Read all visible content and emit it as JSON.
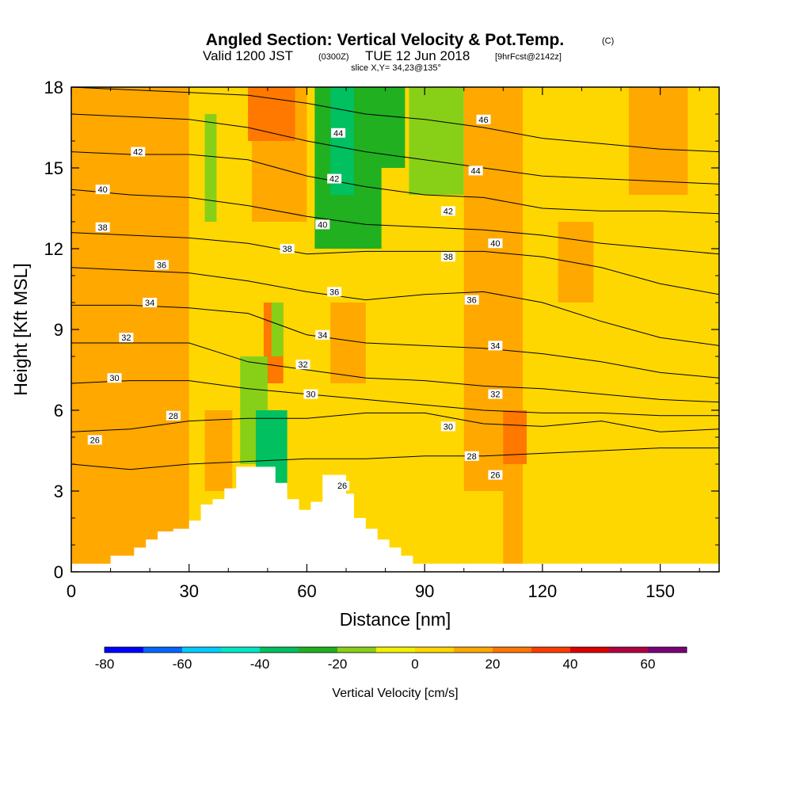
{
  "header": {
    "title_main": "Angled Section: Vertical Velocity & Pot.Temp.",
    "title_unit": "(C)",
    "valid_prefix": "Valid 1200 JST",
    "valid_utc": "(0300Z)",
    "valid_date": "TUE 12 Jun 2018",
    "forecast_tag": "[9hrFcst@2142z]",
    "slice_info": "slice X,Y= 34,23@135°"
  },
  "chart_data": {
    "type": "heatmap",
    "xlabel": "Distance [nm]",
    "ylabel": "Height [Kft MSL]",
    "xlim": [
      0,
      165
    ],
    "ylim": [
      0,
      18
    ],
    "xticks": [
      "0",
      "30",
      "60",
      "90",
      "120",
      "150"
    ],
    "yticks": [
      "0",
      "3",
      "6",
      "9",
      "12",
      "15",
      "18"
    ],
    "terrain_profile": [
      {
        "x": 0,
        "h": 0.3
      },
      {
        "x": 10,
        "h": 0.6
      },
      {
        "x": 16,
        "h": 0.9
      },
      {
        "x": 19,
        "h": 1.2
      },
      {
        "x": 22,
        "h": 1.5
      },
      {
        "x": 26,
        "h": 1.6
      },
      {
        "x": 30,
        "h": 1.9
      },
      {
        "x": 33,
        "h": 2.5
      },
      {
        "x": 36,
        "h": 2.7
      },
      {
        "x": 39,
        "h": 3.1
      },
      {
        "x": 42,
        "h": 3.9
      },
      {
        "x": 52,
        "h": 3.3
      },
      {
        "x": 55,
        "h": 2.7
      },
      {
        "x": 58,
        "h": 2.3
      },
      {
        "x": 61,
        "h": 2.6
      },
      {
        "x": 64,
        "h": 3.6
      },
      {
        "x": 70,
        "h": 2.9
      },
      {
        "x": 72,
        "h": 2.0
      },
      {
        "x": 75,
        "h": 1.6
      },
      {
        "x": 78,
        "h": 1.2
      },
      {
        "x": 81,
        "h": 0.9
      },
      {
        "x": 84,
        "h": 0.6
      },
      {
        "x": 87,
        "h": 0.3
      },
      {
        "x": 165,
        "h": 0.3
      }
    ],
    "velocity_cells": [
      {
        "x0": 0,
        "x1": 165,
        "y0": 0,
        "y1": 18,
        "w": 5
      },
      {
        "x0": 0,
        "x1": 30,
        "y0": 0,
        "y1": 18,
        "w": 12
      },
      {
        "x0": 30,
        "x1": 42,
        "y0": 7,
        "y1": 18,
        "w": 3
      },
      {
        "x0": 46,
        "x1": 60,
        "y0": 13,
        "y1": 18,
        "w": 15
      },
      {
        "x0": 45,
        "x1": 57,
        "y0": 16,
        "y1": 18,
        "w": 25
      },
      {
        "x0": 34,
        "x1": 41,
        "y0": 3,
        "y1": 6,
        "w": 18
      },
      {
        "x0": 49,
        "x1": 54,
        "y0": 7,
        "y1": 10,
        "w": 20
      },
      {
        "x0": 66,
        "x1": 75,
        "y0": 7,
        "y1": 10,
        "w": 18
      },
      {
        "x0": 62,
        "x1": 79,
        "y0": 12,
        "y1": 18,
        "w": -22
      },
      {
        "x0": 66,
        "x1": 72,
        "y0": 14,
        "y1": 18,
        "w": -35
      },
      {
        "x0": 77,
        "x1": 85,
        "y0": 15,
        "y1": 18,
        "w": -30
      },
      {
        "x0": 86,
        "x1": 100,
        "y0": 14,
        "y1": 18,
        "w": -20
      },
      {
        "x0": 34,
        "x1": 37,
        "y0": 13,
        "y1": 17,
        "w": -18
      },
      {
        "x0": 43,
        "x1": 50,
        "y0": 4,
        "y1": 8,
        "w": -18
      },
      {
        "x0": 47,
        "x1": 55,
        "y0": 3,
        "y1": 6,
        "w": -35
      },
      {
        "x0": 51,
        "x1": 54,
        "y0": 8,
        "y1": 10,
        "w": -20
      },
      {
        "x0": 100,
        "x1": 115,
        "y0": 0,
        "y1": 18,
        "w": 10
      },
      {
        "x0": 124,
        "x1": 133,
        "y0": 10,
        "y1": 13,
        "w": 18
      },
      {
        "x0": 142,
        "x1": 157,
        "y0": 14,
        "y1": 18,
        "w": 18
      },
      {
        "x0": 110,
        "x1": 116,
        "y0": 4,
        "y1": 6,
        "w": 20
      },
      {
        "x0": 93,
        "x1": 110,
        "y0": 0,
        "y1": 3,
        "w": 0
      },
      {
        "x0": 126,
        "x1": 144,
        "y0": 0,
        "y1": 3,
        "w": 0
      },
      {
        "x0": 150,
        "x1": 165,
        "y0": 0,
        "y1": 2,
        "w": 0
      }
    ],
    "theta_isentropes": [
      {
        "value": 26,
        "label": "26",
        "h": [
          4.0,
          3.8,
          4.0,
          4.1,
          4.2,
          4.2,
          4.3,
          4.3,
          4.4,
          4.5,
          4.6,
          4.6
        ]
      },
      {
        "value": 28,
        "label": "28",
        "h": [
          5.2,
          5.3,
          5.6,
          5.7,
          5.7,
          5.9,
          5.9,
          5.5,
          5.4,
          5.6,
          5.2,
          5.3
        ]
      },
      {
        "value": 30,
        "label": "30",
        "h": [
          7.0,
          7.1,
          7.1,
          6.8,
          6.6,
          6.4,
          6.2,
          6.0,
          5.9,
          5.9,
          5.8,
          5.8
        ]
      },
      {
        "value": 32,
        "label": "32",
        "h": [
          8.5,
          8.5,
          8.5,
          7.8,
          7.5,
          7.2,
          7.1,
          6.9,
          6.8,
          6.6,
          6.4,
          6.3
        ]
      },
      {
        "value": 34,
        "label": "34",
        "h": [
          9.9,
          9.9,
          9.8,
          9.6,
          8.8,
          8.5,
          8.4,
          8.3,
          8.1,
          7.8,
          7.4,
          7.2
        ]
      },
      {
        "value": 36,
        "label": "36",
        "h": [
          11.3,
          11.2,
          11.1,
          10.8,
          10.4,
          10.1,
          10.3,
          10.4,
          10.0,
          9.3,
          8.7,
          8.4
        ]
      },
      {
        "value": 38,
        "label": "38",
        "h": [
          12.6,
          12.5,
          12.4,
          12.2,
          11.8,
          11.9,
          11.9,
          11.9,
          11.7,
          11.3,
          10.7,
          10.3
        ]
      },
      {
        "value": 40,
        "label": "40",
        "h": [
          14.2,
          14.0,
          13.9,
          13.6,
          13.2,
          12.9,
          12.8,
          12.7,
          12.5,
          12.2,
          12.0,
          11.8
        ]
      },
      {
        "value": 42,
        "label": "42",
        "h": [
          15.6,
          15.5,
          15.5,
          15.3,
          14.7,
          14.3,
          14.0,
          13.9,
          13.5,
          13.4,
          13.4,
          13.3
        ]
      },
      {
        "value": 44,
        "label": "44",
        "h": [
          17.0,
          16.9,
          16.8,
          16.5,
          16.0,
          15.6,
          15.3,
          15.0,
          14.7,
          14.6,
          14.5,
          14.4
        ]
      },
      {
        "value": 46,
        "label": "46",
        "h": [
          18.0,
          17.9,
          17.8,
          17.7,
          17.4,
          17.0,
          16.8,
          16.5,
          16.1,
          15.9,
          15.7,
          15.6
        ]
      }
    ],
    "theta_x": [
      0,
      15,
      30,
      45,
      60,
      75,
      90,
      105,
      120,
      135,
      150,
      165
    ],
    "theta_labels": [
      {
        "label": "26",
        "x": 6,
        "y": 4.9
      },
      {
        "label": "28",
        "x": 26,
        "y": 5.8
      },
      {
        "label": "30",
        "x": 11,
        "y": 7.2
      },
      {
        "label": "32",
        "x": 14,
        "y": 8.7
      },
      {
        "label": "34",
        "x": 20,
        "y": 10.0
      },
      {
        "label": "36",
        "x": 23,
        "y": 11.4
      },
      {
        "label": "38",
        "x": 8,
        "y": 12.8
      },
      {
        "label": "40",
        "x": 8,
        "y": 14.2
      },
      {
        "label": "42",
        "x": 17,
        "y": 15.6
      },
      {
        "label": "38",
        "x": 55,
        "y": 12.0
      },
      {
        "label": "40",
        "x": 64,
        "y": 12.9
      },
      {
        "label": "42",
        "x": 67,
        "y": 14.6
      },
      {
        "label": "44",
        "x": 68,
        "y": 16.3
      },
      {
        "label": "36",
        "x": 67,
        "y": 10.4
      },
      {
        "label": "34",
        "x": 64,
        "y": 8.8
      },
      {
        "label": "32",
        "x": 59,
        "y": 7.7
      },
      {
        "label": "30",
        "x": 61,
        "y": 6.6
      },
      {
        "label": "26",
        "x": 69,
        "y": 3.2
      },
      {
        "label": "46",
        "x": 105,
        "y": 16.8
      },
      {
        "label": "44",
        "x": 103,
        "y": 14.9
      },
      {
        "label": "42",
        "x": 96,
        "y": 13.4
      },
      {
        "label": "40",
        "x": 108,
        "y": 12.2
      },
      {
        "label": "38",
        "x": 96,
        "y": 11.7
      },
      {
        "label": "36",
        "x": 102,
        "y": 10.1
      },
      {
        "label": "34",
        "x": 108,
        "y": 8.4
      },
      {
        "label": "32",
        "x": 108,
        "y": 6.6
      },
      {
        "label": "30",
        "x": 96,
        "y": 5.4
      },
      {
        "label": "28",
        "x": 102,
        "y": 4.3
      },
      {
        "label": "26",
        "x": 108,
        "y": 3.6
      }
    ],
    "colorbar": {
      "label": "Vertical Velocity [cm/s]",
      "tick_labels": [
        "-80",
        "-60",
        "-40",
        "-20",
        "0",
        "20",
        "40",
        "60"
      ],
      "levels": [
        -80,
        -70,
        -60,
        -50,
        -40,
        -30,
        -20,
        -10,
        0,
        10,
        20,
        30,
        40,
        50,
        60,
        70
      ],
      "colors": [
        "#0000ff",
        "#0066ff",
        "#00ccff",
        "#00e6c8",
        "#00c060",
        "#20b020",
        "#88d018",
        "#f2f200",
        "#ffd700",
        "#ffa800",
        "#ff7800",
        "#ff3c00",
        "#dc0000",
        "#b00040",
        "#7a0078"
      ]
    }
  }
}
